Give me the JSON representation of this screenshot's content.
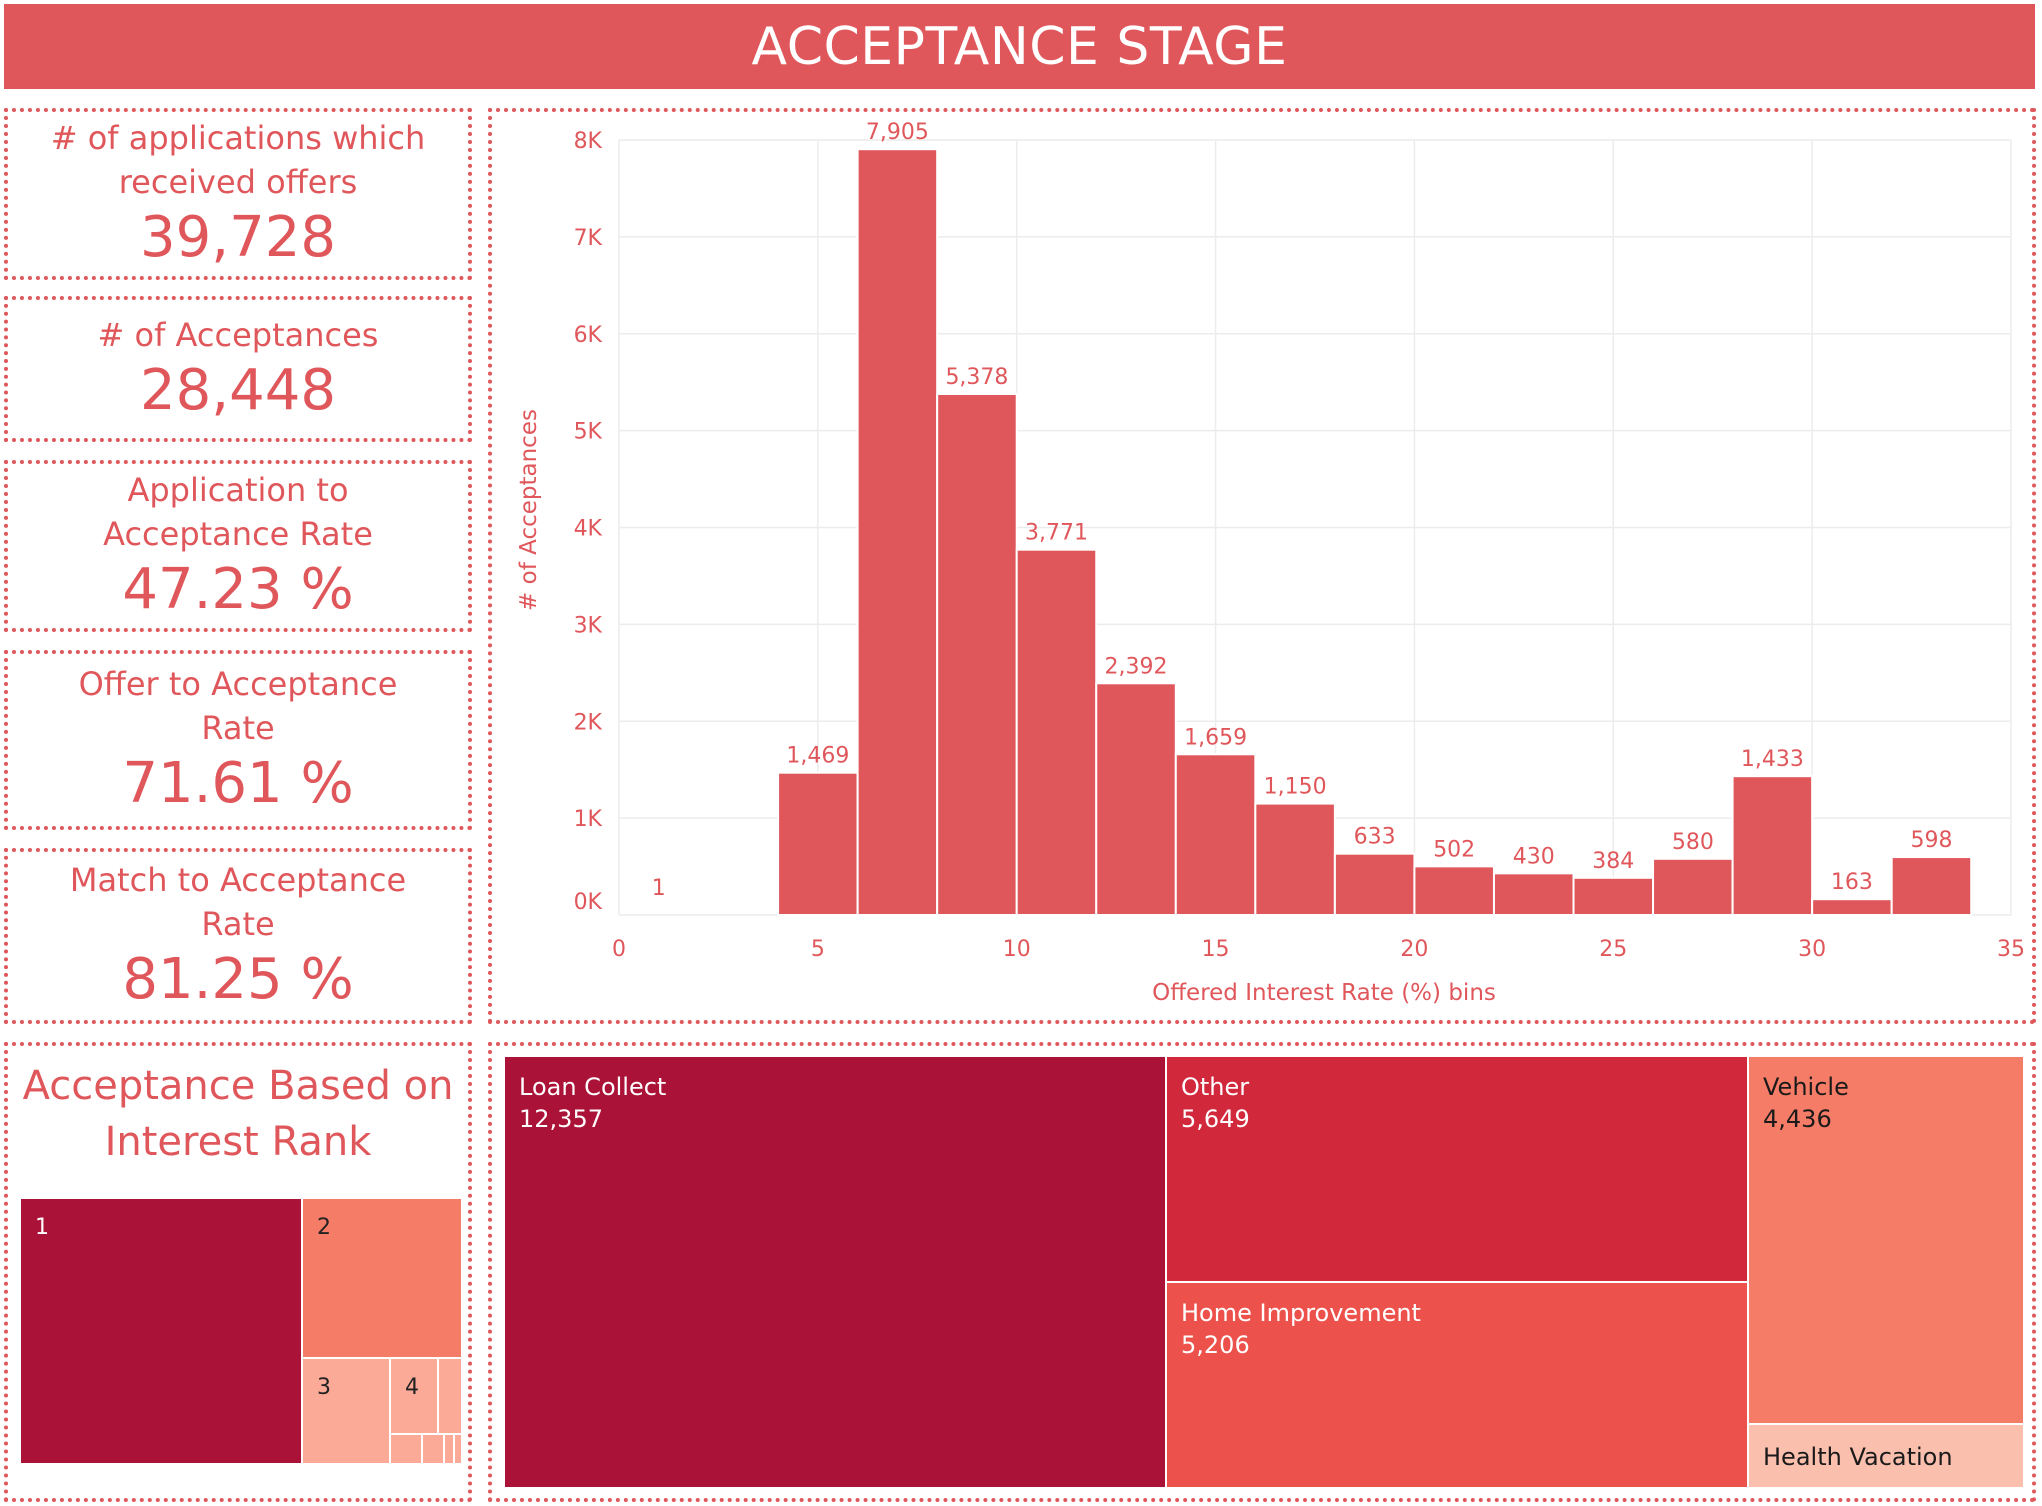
{
  "title": "ACCEPTANCE STAGE",
  "kpis": [
    {
      "label": "# of applications which received offers",
      "value": "39,728"
    },
    {
      "label": "# of Acceptances",
      "value": "28,448"
    },
    {
      "label": "Application to Acceptance Rate",
      "value": "47.23 %"
    },
    {
      "label": "Offer to Acceptance Rate",
      "value": "71.61 %"
    },
    {
      "label": "Match to Acceptance Rate",
      "value": "81.25 %"
    }
  ],
  "chart_data": [
    {
      "type": "bar",
      "title": "",
      "xlabel": "Offered Interest Rate (%) bins",
      "ylabel": "# of Acceptances",
      "bin_width": 2,
      "x": [
        0,
        4,
        6,
        8,
        10,
        12,
        14,
        16,
        18,
        20,
        22,
        24,
        26,
        28,
        30,
        32
      ],
      "values": [
        1,
        1469,
        7905,
        5378,
        3771,
        2392,
        1659,
        1150,
        633,
        502,
        430,
        384,
        580,
        1433,
        163,
        598
      ],
      "labels": [
        "1",
        "1,469",
        "7,905",
        "5,378",
        "3,771",
        "2,392",
        "1,659",
        "1,150",
        "633",
        "502",
        "430",
        "384",
        "580",
        "1,433",
        "163",
        "598"
      ],
      "xlim": [
        0,
        35
      ],
      "ylim": [
        0,
        8000
      ],
      "xticks": [
        "0",
        "5",
        "10",
        "15",
        "20",
        "25",
        "30",
        "35"
      ],
      "yticks": [
        "0K",
        "1K",
        "2K",
        "3K",
        "4K",
        "5K",
        "6K",
        "7K",
        "8K"
      ],
      "grid": true,
      "color": "#e0575b"
    },
    {
      "type": "treemap",
      "title": "Acceptance Based on Interest Rank",
      "categories": [
        "1",
        "2",
        "3",
        "4"
      ]
    },
    {
      "type": "treemap",
      "title": "",
      "categories": [
        "Loan Collect",
        "Other",
        "Home Improvement",
        "Vehicle",
        "Health Vacation"
      ],
      "values": [
        12357,
        5649,
        5206,
        4436,
        null
      ],
      "value_labels": [
        "12,357",
        "5,649",
        "5,206",
        "4,436",
        ""
      ],
      "colors": [
        "#ab1238",
        "#d1283c",
        "#ec524b",
        "#f57c66",
        "#fbbfae"
      ]
    }
  ],
  "rank_treemap": {
    "title": "Acceptance Based on Interest Rank",
    "items": [
      {
        "label": "1",
        "color": "#ab1238",
        "text_color": "#ffffff"
      },
      {
        "label": "2",
        "color": "#f57c66",
        "text_color": "#222222"
      },
      {
        "label": "3",
        "color": "#fbaa98",
        "text_color": "#222222"
      },
      {
        "label": "4",
        "color": "#fbaa98",
        "text_color": "#222222"
      }
    ]
  },
  "purpose_treemap": {
    "items": [
      {
        "label": "Loan Collect",
        "value": "12,357",
        "color": "#ab1238"
      },
      {
        "label": "Other",
        "value": "5,649",
        "color": "#d1283c"
      },
      {
        "label": "Home Improvement",
        "value": "5,206",
        "color": "#ec524b"
      },
      {
        "label": "Vehicle",
        "value": "4,436",
        "color": "#f57c66"
      },
      {
        "label": "Health Vacation",
        "value": "",
        "color": "#fbbfae"
      }
    ]
  }
}
